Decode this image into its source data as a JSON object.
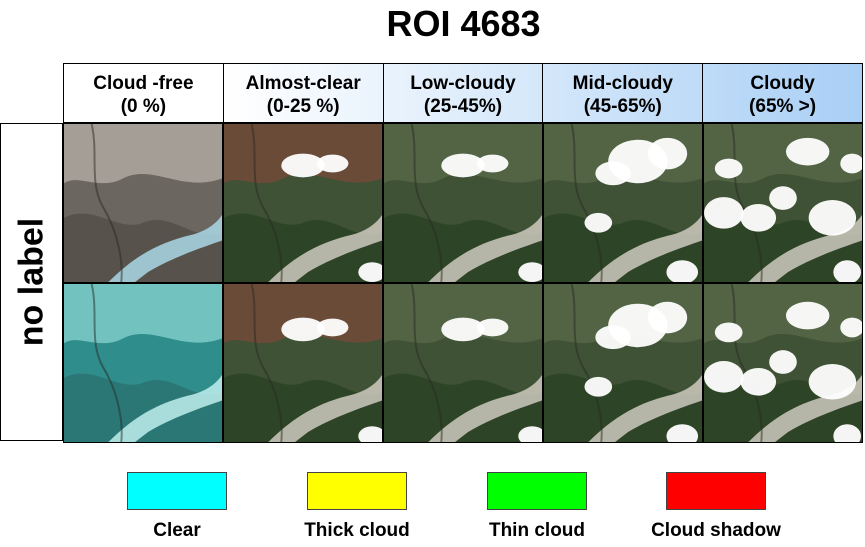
{
  "title": "ROI 4683",
  "row_label": "no label",
  "columns": [
    {
      "line1": "Cloud -free",
      "line2": "(0 %)",
      "cover": "none"
    },
    {
      "line1": "Almost-clear",
      "line2": "(0-25 %)",
      "cover": "low"
    },
    {
      "line1": "Low-cloudy",
      "line2": "(25-45%)",
      "cover": "low"
    },
    {
      "line1": "Mid-cloudy",
      "line2": "(45-65%)",
      "cover": "mid"
    },
    {
      "line1": "Cloudy",
      "line2": "(65% >)",
      "cover": "high"
    }
  ],
  "header_gradient": [
    "#ffffff",
    "#a9cff5"
  ],
  "legend": [
    {
      "label": "Clear",
      "color": "#00ffff"
    },
    {
      "label": "Thick cloud",
      "color": "#ffff00"
    },
    {
      "label": "Thin cloud",
      "color": "#00ff00"
    },
    {
      "label": "Cloud shadow",
      "color": "#ff0000"
    }
  ]
}
